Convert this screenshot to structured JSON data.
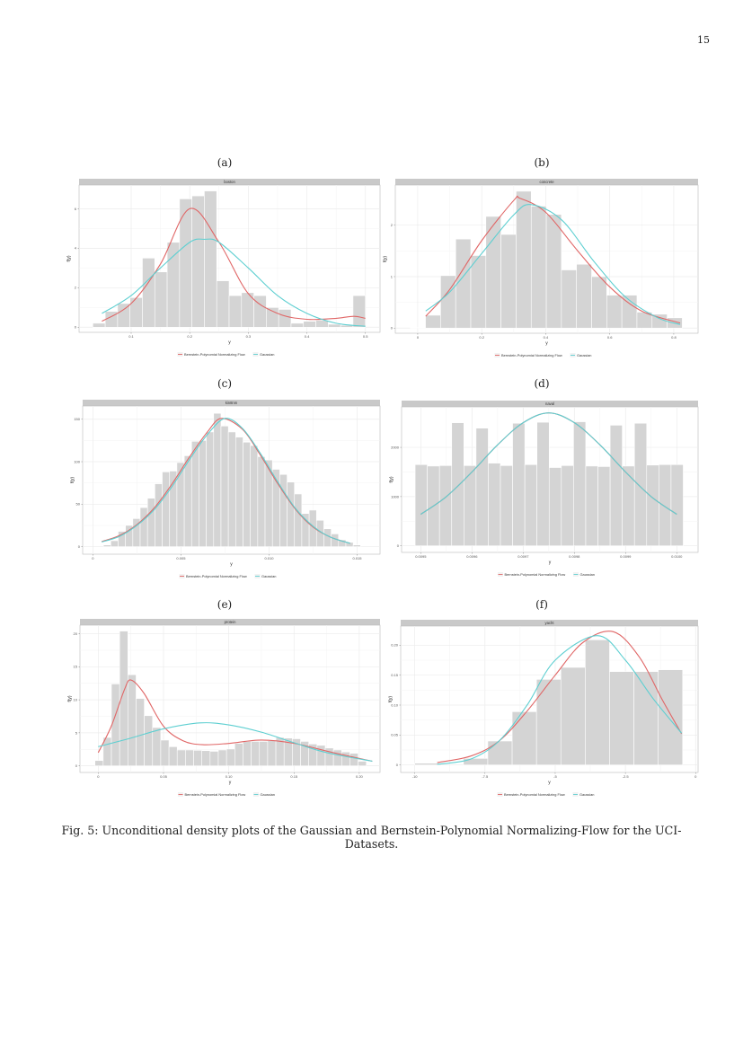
{
  "page_number": "15",
  "caption": "Fig. 5: Unconditional density plots of the Gaussian and Bernstein-Polynomial Normalizing-Flow for the UCI-Datasets.",
  "colors": {
    "bernstein": "#e06666",
    "gaussian": "#5ecfd1",
    "bars": "#d4d4d4",
    "strip": "#c9c9c9",
    "grid": "#ececec"
  },
  "legend": {
    "bernstein": "Bernstein-Polynomial Normalizing Flow",
    "gaussian": "Gaussian"
  },
  "chart_data": [
    {
      "panel": "(a)",
      "title": "boston",
      "type": "bar+line",
      "xlabel": "y",
      "ylabel": "f(y)",
      "xlim": [
        0.011,
        0.525
      ],
      "ylim": [
        -0.26,
        7.2
      ],
      "xticks": [
        0.1,
        0.2,
        0.3,
        0.4,
        0.5
      ],
      "xtick_labels": [
        "0.1",
        "0.2",
        "0.3",
        "0.4",
        "0.5"
      ],
      "yticks": [
        0,
        2,
        4,
        6
      ],
      "ytick_labels": [
        "0",
        "2",
        "4",
        "6"
      ],
      "bins": {
        "start": 0.0345,
        "width": 0.02116,
        "values": [
          0.2,
          0.8,
          1.2,
          1.5,
          3.5,
          2.8,
          4.3,
          6.5,
          6.65,
          6.9,
          2.35,
          1.6,
          1.75,
          1.6,
          1.0,
          0.9,
          0.2,
          0.3,
          0.35,
          0.15,
          0.1,
          1.6
        ]
      },
      "series": [
        {
          "name": "Bernstein-Polynomial Normalizing Flow",
          "x": [
            0.05,
            0.1,
            0.15,
            0.2,
            0.25,
            0.3,
            0.35,
            0.4,
            0.45,
            0.48,
            0.5
          ],
          "y": [
            0.3,
            1.2,
            3.2,
            6.0,
            4.3,
            1.7,
            0.7,
            0.4,
            0.45,
            0.55,
            0.45
          ]
        },
        {
          "name": "Gaussian",
          "x": [
            0.05,
            0.1,
            0.15,
            0.2,
            0.225,
            0.25,
            0.3,
            0.35,
            0.4,
            0.45,
            0.5
          ],
          "y": [
            0.7,
            1.6,
            3.0,
            4.3,
            4.45,
            4.3,
            3.0,
            1.6,
            0.7,
            0.2,
            0.05
          ]
        }
      ]
    },
    {
      "panel": "(b)",
      "title": "concrete",
      "type": "bar+line",
      "xlabel": "y",
      "ylabel": "f(y)",
      "xlim": [
        -0.07,
        0.876
      ],
      "ylim": [
        -0.1,
        2.78
      ],
      "xticks": [
        0,
        0.2,
        0.4,
        0.6,
        0.8
      ],
      "xtick_labels": [
        "0",
        "0.2",
        "0.4",
        "0.6",
        "0.8"
      ],
      "yticks": [
        0,
        1,
        2
      ],
      "ytick_labels": [
        "0",
        "1",
        "2"
      ],
      "bins": {
        "start": -0.023,
        "width": 0.0472,
        "values": [
          0.01,
          0.25,
          1.02,
          1.73,
          1.41,
          2.17,
          1.82,
          2.66,
          2.37,
          2.21,
          1.13,
          1.24,
          1.0,
          0.64,
          0.64,
          0.31,
          0.27,
          0.2
        ]
      },
      "series": [
        {
          "name": "Bernstein-Polynomial Normalizing Flow",
          "x": [
            0.025,
            0.1,
            0.2,
            0.3,
            0.32,
            0.4,
            0.5,
            0.6,
            0.7,
            0.82
          ],
          "y": [
            0.23,
            0.75,
            1.7,
            2.48,
            2.52,
            2.25,
            1.5,
            0.8,
            0.33,
            0.1
          ]
        },
        {
          "name": "Gaussian",
          "x": [
            0.025,
            0.1,
            0.2,
            0.3,
            0.355,
            0.45,
            0.55,
            0.65,
            0.75,
            0.82
          ],
          "y": [
            0.33,
            0.7,
            1.45,
            2.2,
            2.4,
            2.1,
            1.3,
            0.6,
            0.2,
            0.07
          ]
        }
      ]
    },
    {
      "panel": "(c)",
      "title": "kin8nm",
      "type": "bar+line",
      "xlabel": "y",
      "ylabel": "f(y)",
      "xlim": [
        -0.00058,
        0.0163
      ],
      "ylim": [
        -8.9,
        165.6
      ],
      "xticks": [
        0,
        0.005,
        0.01,
        0.015
      ],
      "xtick_labels": [
        "0",
        "0.005",
        "0.010",
        "0.015"
      ],
      "yticks": [
        0,
        50,
        100,
        150
      ],
      "ytick_labels": [
        "0",
        "50",
        "100",
        "150"
      ],
      "bins": {
        "start": 0.0006,
        "width": 0.000417,
        "values": [
          2,
          7,
          18,
          25,
          33,
          46,
          57,
          74,
          88,
          89,
          99,
          107,
          124,
          125,
          135,
          157,
          142,
          135,
          129,
          123,
          119,
          106,
          102,
          91,
          85,
          76,
          62,
          39,
          43,
          31,
          21,
          15,
          8,
          5,
          2
        ]
      },
      "series": [
        {
          "name": "Bernstein-Polynomial Normalizing Flow",
          "x": [
            0.0005,
            0.0015,
            0.0025,
            0.0035,
            0.0045,
            0.0055,
            0.0065,
            0.0073,
            0.0085,
            0.0095,
            0.0105,
            0.0115,
            0.0125,
            0.0135,
            0.0146
          ],
          "y": [
            6,
            13,
            26,
            46,
            74,
            106,
            135,
            151,
            138,
            108,
            74,
            44,
            23,
            11,
            4
          ]
        },
        {
          "name": "Gaussian",
          "x": [
            0.0005,
            0.0015,
            0.0025,
            0.0035,
            0.0045,
            0.0055,
            0.0065,
            0.0075,
            0.0085,
            0.0095,
            0.0105,
            0.0115,
            0.0125,
            0.0135,
            0.0146
          ],
          "y": [
            5.5,
            12,
            25,
            44,
            71,
            103,
            132,
            151,
            139,
            110,
            76,
            45,
            24,
            11,
            4
          ]
        }
      ]
    },
    {
      "panel": "(d)",
      "title": "naval",
      "type": "bar+line",
      "xlabel": "y",
      "ylabel": "f(y)",
      "xlim": [
        0.0094626,
        0.0100416
      ],
      "ylim": [
        -133,
        2822
      ],
      "xticks": [
        0.0095,
        0.0096,
        0.0097,
        0.0098,
        0.0099,
        0.01
      ],
      "xtick_labels": [
        "0.0095",
        "0.0096",
        "0.0097",
        "0.0098",
        "0.0099",
        "0.0100"
      ],
      "yticks": [
        0,
        1000,
        2000
      ],
      "ytick_labels": [
        "0",
        "1000",
        "2000"
      ],
      "bins": {
        "start": 0.009489,
        "width": 2.38e-05,
        "values": [
          1650,
          1620,
          1630,
          2500,
          1630,
          2390,
          1680,
          1630,
          2490,
          1650,
          2510,
          1590,
          1630,
          2520,
          1620,
          1610,
          2450,
          1620,
          2490,
          1640,
          1650,
          1650
        ]
      },
      "series": [
        {
          "name": "Bernstein-Polynomial Normalizing Flow",
          "x": [
            0.0095,
            0.00955,
            0.0096,
            0.00965,
            0.0097,
            0.00975,
            0.0098,
            0.00985,
            0.0099,
            0.00995,
            0.01
          ],
          "y": [
            640,
            1000,
            1500,
            2050,
            2500,
            2700,
            2500,
            2050,
            1500,
            1000,
            640
          ]
        },
        {
          "name": "Gaussian",
          "x": [
            0.0095,
            0.00955,
            0.0096,
            0.00965,
            0.0097,
            0.00975,
            0.0098,
            0.00985,
            0.0099,
            0.00995,
            0.01
          ],
          "y": [
            640,
            1000,
            1500,
            2050,
            2500,
            2700,
            2500,
            2050,
            1500,
            1000,
            640
          ]
        }
      ]
    },
    {
      "panel": "(e)",
      "title": "protein",
      "type": "bar+line",
      "xlabel": "y",
      "ylabel": "f(y)",
      "xlim": [
        -0.014,
        0.2159
      ],
      "ylim": [
        -1.0,
        21.3
      ],
      "xticks": [
        0,
        0.05,
        0.1,
        0.15,
        0.2
      ],
      "xtick_labels": [
        "0",
        "0.05",
        "0.10",
        "0.15",
        "0.20"
      ],
      "yticks": [
        0,
        5,
        10,
        15,
        20
      ],
      "ytick_labels": [
        "0",
        "5",
        "10",
        "15",
        "20"
      ],
      "bins": {
        "start": -0.0025,
        "width": 0.0063,
        "values": [
          0.8,
          4.3,
          12.4,
          20.4,
          13.8,
          10.2,
          7.6,
          5.8,
          3.9,
          2.9,
          2.4,
          2.4,
          2.35,
          2.3,
          2.2,
          2.4,
          2.55,
          3.4,
          3.7,
          3.7,
          3.7,
          3.8,
          4.3,
          4.2,
          4.1,
          3.7,
          3.3,
          3.1,
          2.7,
          2.4,
          2.1,
          1.9,
          0.7
        ]
      },
      "series": [
        {
          "name": "Bernstein-Polynomial Normalizing Flow",
          "x": [
            0,
            0.01,
            0.02,
            0.025,
            0.035,
            0.05,
            0.065,
            0.08,
            0.1,
            0.125,
            0.15,
            0.18,
            0.21
          ],
          "y": [
            2,
            6,
            11.5,
            13,
            11,
            6,
            3.8,
            3.2,
            3.4,
            3.9,
            3.4,
            2,
            0.7
          ]
        },
        {
          "name": "Gaussian",
          "x": [
            0,
            0.025,
            0.05,
            0.078,
            0.1,
            0.125,
            0.15,
            0.175,
            0.21
          ],
          "y": [
            2.9,
            4.2,
            5.6,
            6.5,
            6.2,
            5.1,
            3.5,
            2.0,
            0.7
          ]
        }
      ]
    },
    {
      "panel": "(f)",
      "title": "yacht",
      "type": "bar+line",
      "xlabel": "y",
      "ylabel": "f(y)",
      "xlim": [
        -10.5,
        0.087
      ],
      "ylim": [
        -0.0125,
        0.232
      ],
      "xticks": [
        -10,
        -7.5,
        -5,
        -2.5,
        0
      ],
      "xtick_labels": [
        "-10",
        "-7.5",
        "-5",
        "-2.5",
        "0"
      ],
      "yticks": [
        0,
        0.05,
        0.1,
        0.15,
        0.2
      ],
      "ytick_labels": [
        "0",
        "0.05",
        "0.10",
        "0.15",
        "0.20"
      ],
      "bins": {
        "start": -10.0,
        "width": 0.867,
        "values": [
          0.003,
          0,
          0.011,
          0.04,
          0.089,
          0.143,
          0.163,
          0.209,
          0.156,
          0.156,
          0.159
        ]
      },
      "series": [
        {
          "name": "Bernstein-Polynomial Normalizing Flow",
          "x": [
            -9.2,
            -8,
            -7,
            -6,
            -5,
            -4,
            -2.93,
            -2,
            -1.2,
            -0.5
          ],
          "y": [
            0.004,
            0.015,
            0.04,
            0.09,
            0.15,
            0.205,
            0.2225,
            0.18,
            0.11,
            0.052
          ]
        },
        {
          "name": "Gaussian",
          "x": [
            -9.2,
            -8,
            -7,
            -6,
            -5,
            -3.5,
            -2.5,
            -1.5,
            -0.5
          ],
          "y": [
            0.001,
            0.01,
            0.04,
            0.1,
            0.175,
            0.216,
            0.175,
            0.11,
            0.053
          ]
        }
      ]
    }
  ]
}
